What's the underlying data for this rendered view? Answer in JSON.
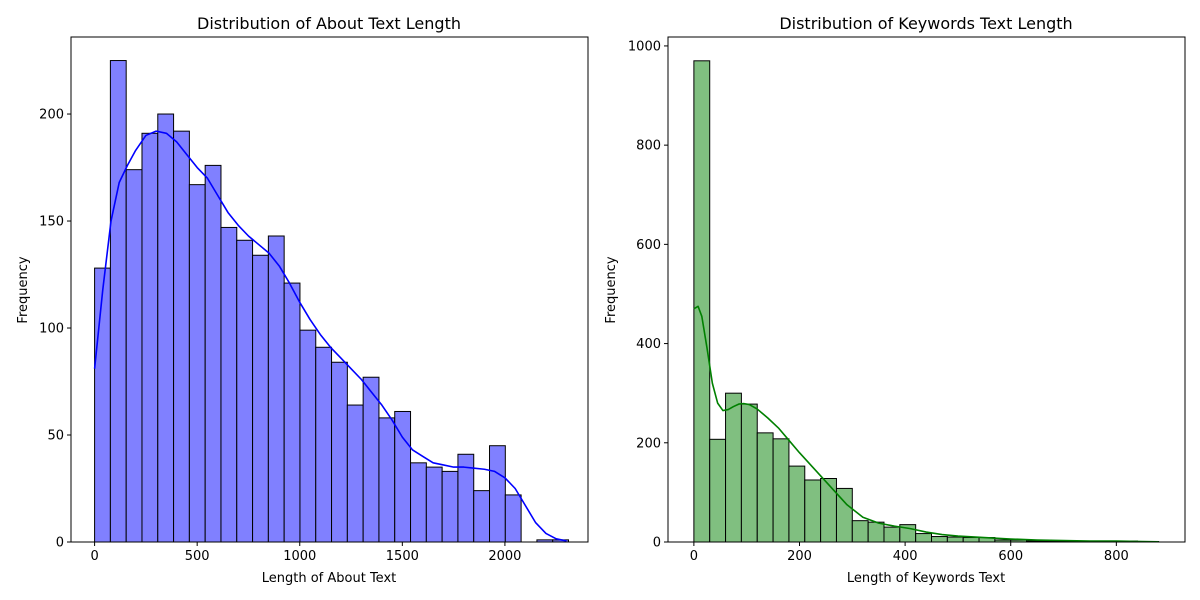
{
  "chart_data": [
    {
      "type": "histogram",
      "title": "Distribution of About Text Length",
      "xlabel": "Length of About Text",
      "ylabel": "Frequency",
      "xlim": [
        -115,
        2405
      ],
      "ylim": [
        0,
        236
      ],
      "xticks": [
        0,
        500,
        1000,
        1500,
        2000
      ],
      "yticks": [
        0,
        50,
        100,
        150,
        200
      ],
      "bar_color": "#8080ff",
      "edge_color": "#000000",
      "kde_color": "#0000ff",
      "bins": [
        {
          "x0": 0,
          "x1": 77,
          "value": 128
        },
        {
          "x0": 77,
          "x1": 154,
          "value": 225
        },
        {
          "x0": 154,
          "x1": 231,
          "value": 174
        },
        {
          "x0": 231,
          "x1": 308,
          "value": 191
        },
        {
          "x0": 308,
          "x1": 385,
          "value": 200
        },
        {
          "x0": 385,
          "x1": 462,
          "value": 192
        },
        {
          "x0": 462,
          "x1": 539,
          "value": 167
        },
        {
          "x0": 539,
          "x1": 616,
          "value": 176
        },
        {
          "x0": 616,
          "x1": 693,
          "value": 147
        },
        {
          "x0": 693,
          "x1": 770,
          "value": 141
        },
        {
          "x0": 770,
          "x1": 847,
          "value": 134
        },
        {
          "x0": 847,
          "x1": 924,
          "value": 143
        },
        {
          "x0": 924,
          "x1": 1001,
          "value": 121
        },
        {
          "x0": 1001,
          "x1": 1078,
          "value": 99
        },
        {
          "x0": 1078,
          "x1": 1155,
          "value": 91
        },
        {
          "x0": 1155,
          "x1": 1232,
          "value": 84
        },
        {
          "x0": 1232,
          "x1": 1309,
          "value": 64
        },
        {
          "x0": 1309,
          "x1": 1386,
          "value": 77
        },
        {
          "x0": 1386,
          "x1": 1463,
          "value": 58
        },
        {
          "x0": 1463,
          "x1": 1540,
          "value": 61
        },
        {
          "x0": 1540,
          "x1": 1617,
          "value": 37
        },
        {
          "x0": 1617,
          "x1": 1694,
          "value": 35
        },
        {
          "x0": 1694,
          "x1": 1771,
          "value": 33
        },
        {
          "x0": 1771,
          "x1": 1848,
          "value": 41
        },
        {
          "x0": 1848,
          "x1": 1925,
          "value": 24
        },
        {
          "x0": 1925,
          "x1": 2002,
          "value": 45
        },
        {
          "x0": 2002,
          "x1": 2079,
          "value": 22
        },
        {
          "x0": 2079,
          "x1": 2156,
          "value": 0
        },
        {
          "x0": 2156,
          "x1": 2233,
          "value": 1
        },
        {
          "x0": 2233,
          "x1": 2310,
          "value": 1
        }
      ],
      "kde": {
        "x": [
          0,
          40,
          80,
          120,
          160,
          200,
          250,
          300,
          350,
          400,
          450,
          500,
          550,
          600,
          650,
          700,
          750,
          800,
          850,
          900,
          950,
          1000,
          1050,
          1100,
          1150,
          1200,
          1250,
          1300,
          1350,
          1400,
          1450,
          1500,
          1550,
          1600,
          1650,
          1700,
          1750,
          1800,
          1850,
          1900,
          1950,
          2000,
          2050,
          2100,
          2150,
          2200,
          2250,
          2300
        ],
        "y": [
          81,
          118,
          150,
          168,
          176,
          183,
          190,
          192,
          191,
          187,
          181,
          175,
          170,
          162,
          154,
          148,
          143,
          139,
          135,
          129,
          121,
          112,
          104,
          97,
          91,
          86,
          81,
          76,
          70,
          64,
          57,
          49,
          43,
          40,
          37,
          36,
          35,
          35,
          34.5,
          34,
          33,
          30,
          25,
          17,
          9,
          4,
          1.5,
          0.5
        ]
      }
    },
    {
      "type": "histogram",
      "title": "Distribution of Keywords Text Length",
      "xlabel": "Length of Keywords Text",
      "ylabel": "Frequency",
      "xlim": [
        -49,
        930
      ],
      "ylim": [
        0,
        1018
      ],
      "xticks": [
        0,
        200,
        400,
        600,
        800
      ],
      "yticks": [
        0,
        200,
        400,
        600,
        800,
        1000
      ],
      "bar_color": "#80bf80",
      "edge_color": "#000000",
      "kde_color": "#008000",
      "bins": [
        {
          "x0": 0,
          "x1": 30,
          "value": 970
        },
        {
          "x0": 30,
          "x1": 60,
          "value": 207
        },
        {
          "x0": 60,
          "x1": 90,
          "value": 300
        },
        {
          "x0": 90,
          "x1": 120,
          "value": 278
        },
        {
          "x0": 120,
          "x1": 150,
          "value": 220
        },
        {
          "x0": 150,
          "x1": 180,
          "value": 208
        },
        {
          "x0": 180,
          "x1": 210,
          "value": 153
        },
        {
          "x0": 210,
          "x1": 240,
          "value": 125
        },
        {
          "x0": 240,
          "x1": 270,
          "value": 128
        },
        {
          "x0": 270,
          "x1": 300,
          "value": 108
        },
        {
          "x0": 300,
          "x1": 330,
          "value": 43
        },
        {
          "x0": 330,
          "x1": 360,
          "value": 40
        },
        {
          "x0": 360,
          "x1": 390,
          "value": 30
        },
        {
          "x0": 390,
          "x1": 420,
          "value": 35
        },
        {
          "x0": 420,
          "x1": 450,
          "value": 17
        },
        {
          "x0": 450,
          "x1": 480,
          "value": 11
        },
        {
          "x0": 480,
          "x1": 510,
          "value": 10
        },
        {
          "x0": 510,
          "x1": 540,
          "value": 9
        },
        {
          "x0": 540,
          "x1": 570,
          "value": 9
        },
        {
          "x0": 570,
          "x1": 600,
          "value": 4
        },
        {
          "x0": 600,
          "x1": 630,
          "value": 4
        },
        {
          "x0": 630,
          "x1": 660,
          "value": 2
        },
        {
          "x0": 660,
          "x1": 690,
          "value": 2
        },
        {
          "x0": 690,
          "x1": 720,
          "value": 2
        },
        {
          "x0": 720,
          "x1": 750,
          "value": 1
        },
        {
          "x0": 750,
          "x1": 780,
          "value": 1
        },
        {
          "x0": 780,
          "x1": 810,
          "value": 2
        },
        {
          "x0": 810,
          "x1": 840,
          "value": 2
        },
        {
          "x0": 840,
          "x1": 870,
          "value": 1
        },
        {
          "x0": 870,
          "x1": 880,
          "value": 1
        }
      ],
      "kde": {
        "x": [
          0,
          8,
          15,
          25,
          35,
          45,
          55,
          65,
          75,
          85,
          95,
          105,
          120,
          140,
          160,
          180,
          200,
          230,
          260,
          290,
          320,
          350,
          380,
          410,
          440,
          470,
          500,
          550,
          600,
          650,
          700,
          750,
          800,
          850,
          880
        ],
        "y": [
          470,
          475,
          455,
          390,
          320,
          280,
          265,
          267,
          273,
          278,
          279,
          277,
          268,
          250,
          230,
          205,
          180,
          145,
          110,
          75,
          50,
          38,
          32,
          27,
          20,
          15,
          12,
          9,
          6,
          4,
          3,
          2,
          2,
          1,
          0.5
        ]
      }
    }
  ]
}
